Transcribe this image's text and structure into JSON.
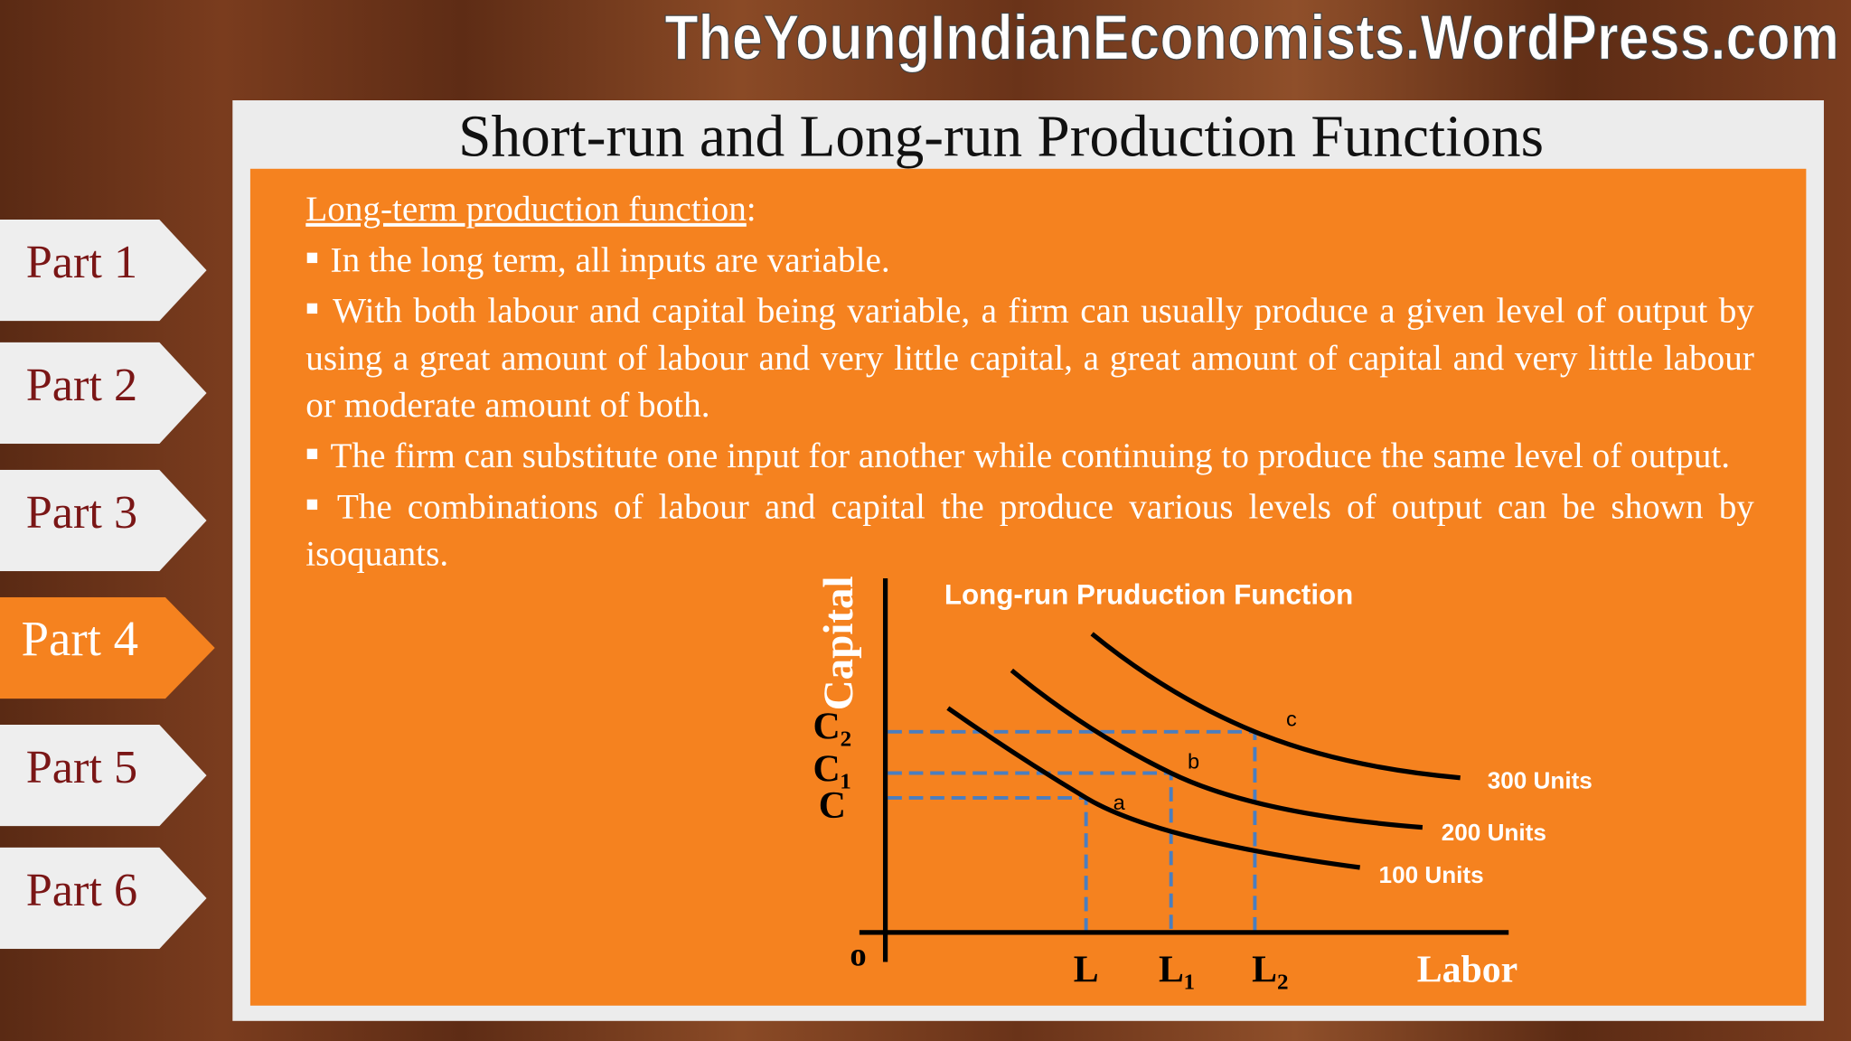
{
  "watermark": "TheYoungIndianEconomists.WordPress.com",
  "title": "Short-run and Long-run Production Functions",
  "nav": {
    "items": [
      "Part 1",
      "Part 2",
      "Part 3",
      "Part 4",
      "Part 5",
      "Part 6"
    ],
    "active": "Part 4"
  },
  "content": {
    "heading": "Long-term production function",
    "heading_suffix": ":",
    "bullets": [
      "In the long term, all inputs are variable.",
      "With both labour and capital being variable, a firm can usually produce a given level of output by using a great amount of labour and very little capital, a great amount of capital and very little labour or moderate amount of both.",
      "The firm can substitute one input for another while continuing to produce the same level of output.",
      "The combinations of labour and capital the produce various levels of output can be shown by isoquants."
    ]
  },
  "diagram": {
    "title": "Long-run  Pruduction Function",
    "y_label": "Capital",
    "x_label": "Labor",
    "origin": "o",
    "y_levels": [
      "C",
      "C₁",
      "C₂"
    ],
    "x_levels": [
      "L",
      "L₁",
      "L₂"
    ],
    "points": [
      "a",
      "b",
      "c"
    ],
    "isoquants": [
      "100 Units",
      "200 Units",
      "300 Units"
    ]
  }
}
